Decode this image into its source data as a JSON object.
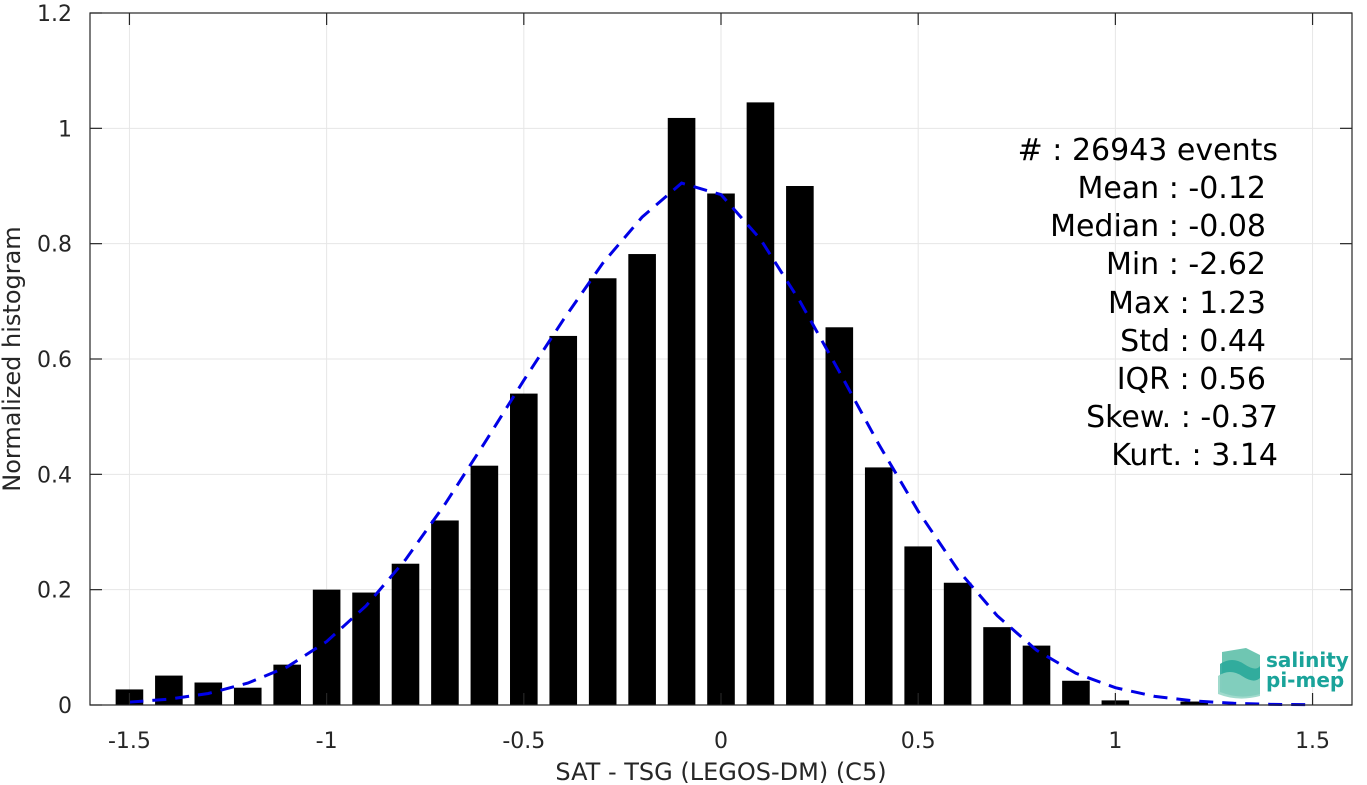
{
  "chart_data": {
    "type": "bar",
    "xlabel": "SAT - TSG (LEGOS-DM) (C5)",
    "ylabel": "Normalized histogram",
    "xlim": [
      -1.6,
      1.6
    ],
    "ylim": [
      0,
      1.2
    ],
    "grid": true,
    "xticks": [
      -1.5,
      -1,
      -0.5,
      0,
      0.5,
      1,
      1.5
    ],
    "xtick_labels": [
      "-1.5",
      "-1",
      "-0.5",
      "0",
      "0.5",
      "1",
      "1.5"
    ],
    "yticks": [
      0,
      0.2,
      0.4,
      0.6,
      0.8,
      1,
      1.2
    ],
    "ytick_labels": [
      "0",
      "0.2",
      "0.4",
      "0.6",
      "0.8",
      "1",
      "1.2"
    ],
    "bar_width": 0.07,
    "bar_color": "#000000",
    "x": [
      -1.5,
      -1.4,
      -1.3,
      -1.2,
      -1.1,
      -1.0,
      -0.9,
      -0.8,
      -0.7,
      -0.6,
      -0.5,
      -0.4,
      -0.3,
      -0.2,
      -0.1,
      0.0,
      0.1,
      0.2,
      0.3,
      0.4,
      0.5,
      0.6,
      0.7,
      0.8,
      0.9,
      1.0,
      1.1,
      1.2
    ],
    "values": [
      0.027,
      0.051,
      0.039,
      0.03,
      0.07,
      0.2,
      0.195,
      0.245,
      0.32,
      0.415,
      0.54,
      0.64,
      0.74,
      0.782,
      1.018,
      0.887,
      1.045,
      0.9,
      0.655,
      0.412,
      0.275,
      0.212,
      0.135,
      0.103,
      0.042,
      0.008,
      0.0,
      0.006
    ],
    "fit": {
      "style": "dashed",
      "color": "#0000e6",
      "x": [
        -1.5,
        -1.4,
        -1.3,
        -1.2,
        -1.1,
        -1.0,
        -0.9,
        -0.8,
        -0.7,
        -0.6,
        -0.5,
        -0.4,
        -0.3,
        -0.2,
        -0.1,
        0.0,
        0.1,
        0.2,
        0.3,
        0.4,
        0.5,
        0.6,
        0.7,
        0.8,
        0.9,
        1.0,
        1.1,
        1.2,
        1.3,
        1.4,
        1.5
      ],
      "y": [
        0.005,
        0.01,
        0.02,
        0.038,
        0.066,
        0.11,
        0.172,
        0.252,
        0.348,
        0.454,
        0.563,
        0.668,
        0.766,
        0.846,
        0.905,
        0.885,
        0.808,
        0.7,
        0.578,
        0.452,
        0.336,
        0.235,
        0.155,
        0.095,
        0.055,
        0.03,
        0.015,
        0.007,
        0.003,
        0.001,
        0.0005
      ]
    },
    "annotations": [
      "#  : 26943 events",
      "Mean : -0.12",
      "Median : -0.08",
      "Min : -2.62",
      "Max : 1.23",
      "Std : 0.44",
      "IQR : 0.56",
      "Skew. : -0.37",
      "Kurt. : 3.14"
    ]
  },
  "logo": {
    "line1": "salinity",
    "line2": "pi-mep"
  },
  "colors": {
    "grid": "#e6e6e6",
    "axis": "#262626",
    "logo_accent": "#1aa39a"
  }
}
